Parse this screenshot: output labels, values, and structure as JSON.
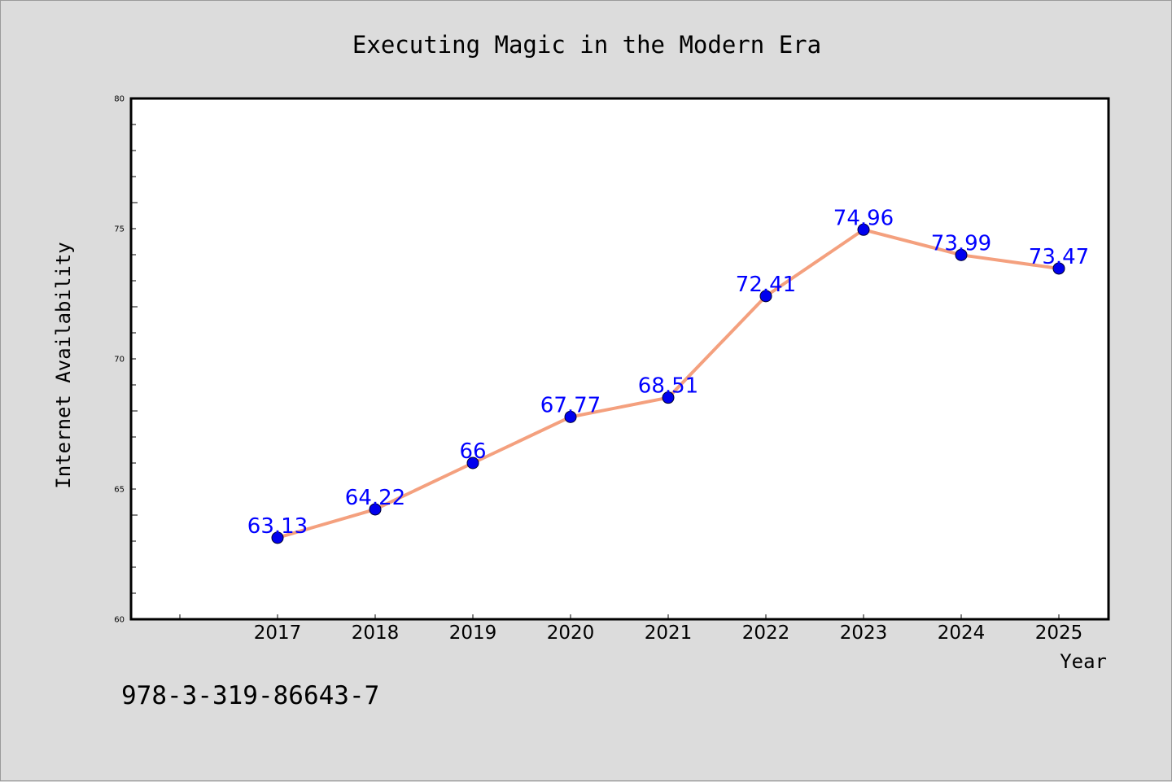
{
  "chart_data": {
    "type": "line",
    "title": "Executing Magic in the Modern Era",
    "xlabel": "Year",
    "ylabel": "Internet Availability",
    "categories": [
      "2017",
      "2018",
      "2019",
      "2020",
      "2021",
      "2022",
      "2023",
      "2024",
      "2025"
    ],
    "series": [
      {
        "values": [
          63.13,
          64.22,
          66,
          67.77,
          68.51,
          72.41,
          74.96,
          73.99,
          73.47
        ],
        "data_labels": [
          "63.13",
          "64.22",
          "66",
          "67.77",
          "68.51",
          "72.41",
          "74.96",
          "73.99",
          "73.47"
        ],
        "line_color": "#f4a07e",
        "marker_color": "#0000ee"
      }
    ],
    "ylim": [
      60,
      80
    ],
    "yticks": [
      "60",
      "65",
      "70",
      "75",
      "80"
    ],
    "grid": false,
    "legend": "none"
  },
  "footer_text": "978-3-319-86643-7"
}
